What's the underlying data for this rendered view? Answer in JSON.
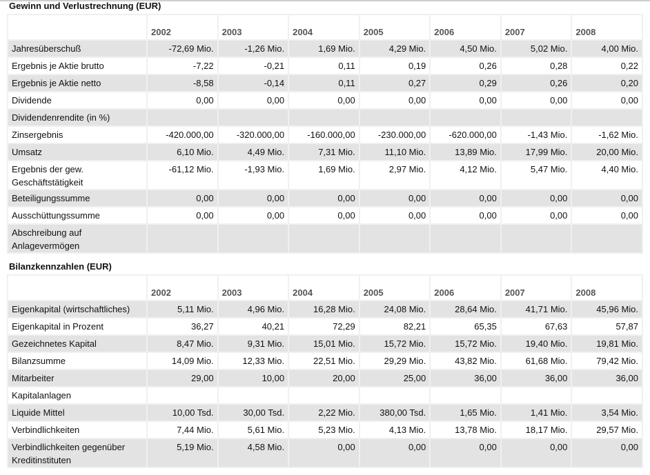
{
  "years": [
    "2002",
    "2003",
    "2004",
    "2005",
    "2006",
    "2007",
    "2008"
  ],
  "guv": {
    "title": "Gewinn und Verlustrechnung (EUR)",
    "rows": [
      {
        "label": "Jahresüberschuß",
        "values": [
          "-72,69 Mio.",
          "-1,26 Mio.",
          "1,69 Mio.",
          "4,29 Mio.",
          "4,50 Mio.",
          "5,02 Mio.",
          "4,00 Mio."
        ]
      },
      {
        "label": "Ergebnis je Aktie brutto",
        "values": [
          "-7,22",
          "-0,21",
          "0,11",
          "0,19",
          "0,26",
          "0,28",
          "0,22"
        ]
      },
      {
        "label": "Ergebnis je Aktie netto",
        "values": [
          "-8,58",
          "-0,14",
          "0,11",
          "0,27",
          "0,29",
          "0,26",
          "0,20"
        ]
      },
      {
        "label": "Dividende",
        "values": [
          "0,00",
          "0,00",
          "0,00",
          "0,00",
          "0,00",
          "0,00",
          "0,00"
        ]
      },
      {
        "label": "Dividendenrendite (in %)",
        "values": [
          "",
          "",
          "",
          "",
          "",
          "",
          ""
        ]
      },
      {
        "label": "Zinsergebnis",
        "values": [
          "-420.000,00",
          "-320.000,00",
          "-160.000,00",
          "-230.000,00",
          "-620.000,00",
          "-1,43 Mio.",
          "-1,62 Mio."
        ]
      },
      {
        "label": "Umsatz",
        "values": [
          "6,10 Mio.",
          "4,49 Mio.",
          "7,31 Mio.",
          "11,10 Mio.",
          "13,89 Mio.",
          "17,99 Mio.",
          "20,00 Mio."
        ]
      },
      {
        "label": "Ergebnis der gew. Geschäftstätigkeit",
        "values": [
          "-61,12 Mio.",
          "-1,93 Mio.",
          "1,69 Mio.",
          "2,97 Mio.",
          "4,12 Mio.",
          "5,47 Mio.",
          "4,40 Mio."
        ]
      },
      {
        "label": "Beteiligungssumme",
        "values": [
          "0,00",
          "0,00",
          "0,00",
          "0,00",
          "0,00",
          "0,00",
          "0,00"
        ]
      },
      {
        "label": "Ausschüttungssumme",
        "values": [
          "0,00",
          "0,00",
          "0,00",
          "0,00",
          "0,00",
          "0,00",
          "0,00"
        ]
      },
      {
        "label": "Abschreibung auf Anlagevermögen",
        "values": [
          "",
          "",
          "",
          "",
          "",
          "",
          ""
        ]
      }
    ]
  },
  "bilanz": {
    "title": "Bilanzkennzahlen (EUR)",
    "rows": [
      {
        "label": "Eigenkapital (wirtschaftliches)",
        "values": [
          "5,11 Mio.",
          "4,96 Mio.",
          "16,28 Mio.",
          "24,08 Mio.",
          "28,64 Mio.",
          "41,71 Mio.",
          "45,96 Mio."
        ]
      },
      {
        "label": "Eigenkapital in Prozent",
        "values": [
          "36,27",
          "40,21",
          "72,29",
          "82,21",
          "65,35",
          "67,63",
          "57,87"
        ]
      },
      {
        "label": "Gezeichnetes Kapital",
        "values": [
          "8,47 Mio.",
          "9,31 Mio.",
          "15,01 Mio.",
          "15,72 Mio.",
          "15,72 Mio.",
          "19,40 Mio.",
          "19,81 Mio."
        ]
      },
      {
        "label": "Bilanzsumme",
        "values": [
          "14,09 Mio.",
          "12,33 Mio.",
          "22,51 Mio.",
          "29,29 Mio.",
          "43,82 Mio.",
          "61,68 Mio.",
          "79,42 Mio."
        ]
      },
      {
        "label": "Mitarbeiter",
        "values": [
          "29,00",
          "10,00",
          "20,00",
          "25,00",
          "36,00",
          "36,00",
          "36,00"
        ]
      },
      {
        "label": "Kapitalanlagen",
        "values": [
          "",
          "",
          "",
          "",
          "",
          "",
          ""
        ]
      },
      {
        "label": "Liquide Mittel",
        "values": [
          "10,00 Tsd.",
          "30,00 Tsd.",
          "2,22 Mio.",
          "380,00 Tsd.",
          "1,65 Mio.",
          "1,41 Mio.",
          "3,54 Mio."
        ]
      },
      {
        "label": "Verbindlichkeiten",
        "values": [
          "7,44 Mio.",
          "5,61 Mio.",
          "5,23 Mio.",
          "4,13 Mio.",
          "13,78 Mio.",
          "18,17 Mio.",
          "29,57 Mio."
        ]
      },
      {
        "label": "Verbindlichkeiten gegenüber Kreditinstituten",
        "values": [
          "5,19 Mio.",
          "4,58 Mio.",
          "0,00",
          "0,00",
          "0,00",
          "0,00",
          "0,00"
        ]
      }
    ]
  }
}
